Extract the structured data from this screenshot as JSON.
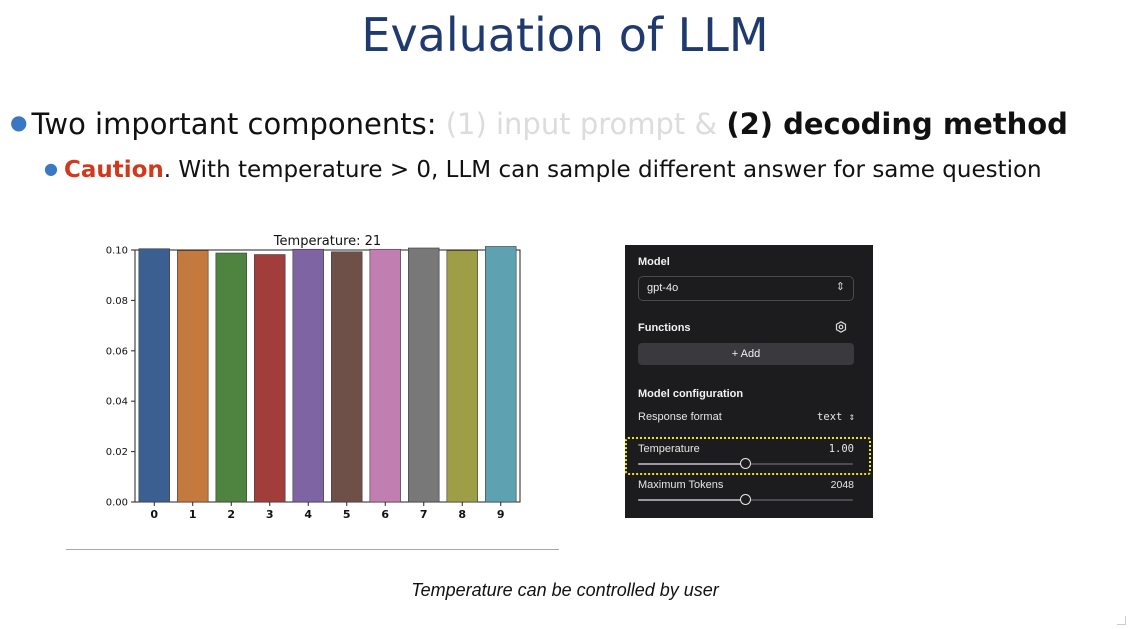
{
  "slide": {
    "title": "Evaluation of LLM",
    "bullet1": {
      "prefix": "Two important components: ",
      "faded": "(1) input prompt & ",
      "strong": "(2) decoding method"
    },
    "bullet2": {
      "caution": "Caution",
      "rest": ". With temperature > 0, LLM can sample different answer for same question"
    },
    "caption": "Temperature can be controlled by user"
  },
  "chart_data": {
    "type": "bar",
    "title": "Temperature: 21",
    "categories": [
      "0",
      "1",
      "2",
      "3",
      "4",
      "5",
      "6",
      "7",
      "8",
      "9"
    ],
    "values": [
      0.1005,
      0.0998,
      0.0988,
      0.0982,
      0.1003,
      0.0993,
      0.1003,
      0.1008,
      0.0998,
      0.1014
    ],
    "colors": [
      "#3b5f90",
      "#c47a3e",
      "#4e8340",
      "#a13e3b",
      "#7f64a3",
      "#6f5048",
      "#c07fb0",
      "#787878",
      "#9e9e47",
      "#5ea1b0"
    ],
    "ylim": [
      0,
      0.1
    ],
    "yticks": [
      "0.00",
      "0.02",
      "0.04",
      "0.06",
      "0.08",
      "0.10"
    ],
    "xlabel": "",
    "ylabel": "",
    "grid": false
  },
  "panel": {
    "model_label": "Model",
    "model_value": "gpt-4o",
    "functions_label": "Functions",
    "add_label": "+ Add",
    "config_label": "Model configuration",
    "response_format_label": "Response format",
    "response_format_value": "text",
    "temperature_label": "Temperature",
    "temperature_value": "1.00",
    "temperature_fraction": 0.5,
    "max_tokens_label": "Maximum Tokens",
    "max_tokens_value": "2048",
    "max_tokens_fraction": 0.5
  }
}
